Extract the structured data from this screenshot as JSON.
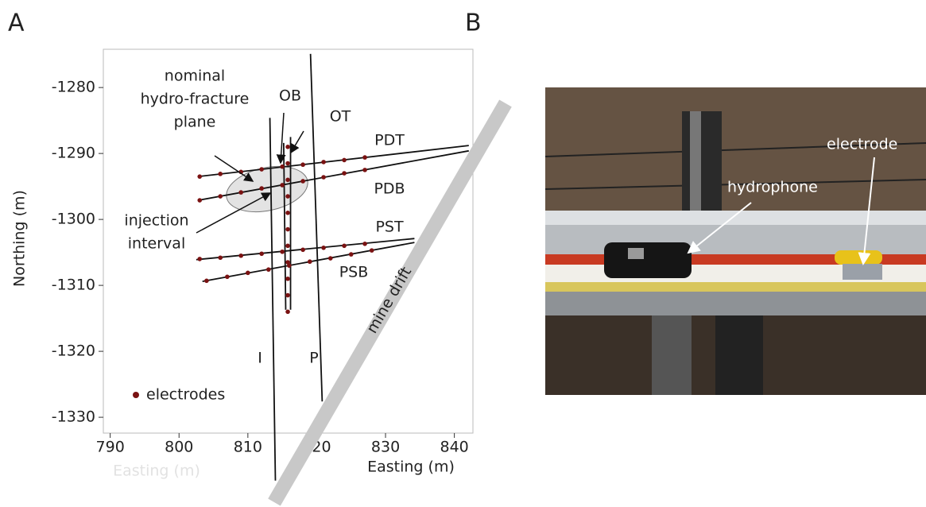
{
  "panel_labels": [
    "A",
    "B"
  ],
  "chart_data": {
    "type": "line",
    "xlabel": "Easting (m)",
    "xlabel_faded": "Easting (m)",
    "ylabel": "Northing (m)",
    "xlim": [
      789,
      842.7
    ],
    "ylim": [
      -1332.4,
      -1274.2
    ],
    "xticks": [
      790,
      800,
      810,
      820,
      830,
      840
    ],
    "yticks": [
      -1330,
      -1320,
      -1310,
      -1300,
      -1290,
      -1280
    ],
    "line_color": "#111",
    "series": [
      {
        "name": "PDT",
        "x": [
          802.8,
          842.1
        ],
        "y": [
          -1293.5,
          -1288.8
        ]
      },
      {
        "name": "PDB",
        "x": [
          802.8,
          842.1
        ],
        "y": [
          -1297.1,
          -1289.6
        ]
      },
      {
        "name": "PST",
        "x": [
          802.5,
          834.2
        ],
        "y": [
          -1306.1,
          -1302.9
        ]
      },
      {
        "name": "PSB",
        "x": [
          803.4,
          834.2
        ],
        "y": [
          -1309.4,
          -1303.5
        ]
      },
      {
        "name": "OB",
        "x": [
          815.2,
          815.5
        ],
        "y": [
          -1288.4,
          -1313.7
        ]
      },
      {
        "name": "OT",
        "x": [
          816.2,
          816.2
        ],
        "y": [
          -1287.5,
          -1313.7
        ]
      },
      {
        "name": "I",
        "x": [
          813.2,
          814.0
        ],
        "y": [
          -1284.6,
          -1339.6
        ]
      },
      {
        "name": "P",
        "x": [
          819.1,
          820.8
        ],
        "y": [
          -1274.9,
          -1327.6
        ]
      }
    ],
    "electrodes": {
      "name": "electrodes",
      "color": "#7a1212",
      "x": [
        803,
        806,
        809,
        812,
        815,
        818,
        821,
        824,
        827,
        803,
        806,
        809,
        812,
        815,
        818,
        821,
        824,
        827,
        803,
        806,
        809,
        812,
        815,
        818,
        821,
        824,
        827,
        804,
        807,
        810,
        813,
        816,
        819,
        822,
        825,
        828,
        815.8,
        815.8,
        815.8,
        815.8,
        815.8,
        815.8,
        815.8,
        815.8,
        815.8,
        815.8,
        815.8
      ],
      "y": [
        -1293.5,
        -1293.1,
        -1292.8,
        -1292.4,
        -1292.0,
        -1291.7,
        -1291.3,
        -1291.0,
        -1290.6,
        -1297.1,
        -1296.5,
        -1295.9,
        -1295.3,
        -1294.8,
        -1294.2,
        -1293.6,
        -1293.0,
        -1292.5,
        -1306.0,
        -1305.8,
        -1305.5,
        -1305.2,
        -1304.9,
        -1304.6,
        -1304.3,
        -1304.0,
        -1303.7,
        -1309.3,
        -1308.7,
        -1308.1,
        -1307.6,
        -1307.0,
        -1306.4,
        -1305.9,
        -1305.3,
        -1304.7,
        -1289,
        -1291.5,
        -1294,
        -1296.5,
        -1299,
        -1301.5,
        -1304,
        -1306.5,
        -1309,
        -1311.5,
        -1314
      ]
    },
    "annotations": {
      "fracture_plane": [
        "nominal",
        "hydro-fracture",
        "plane"
      ],
      "injection": [
        "injection",
        "interval"
      ],
      "drift": "mine drift"
    }
  },
  "photo": {
    "labels": [
      "hydrophone",
      "electrode"
    ]
  }
}
